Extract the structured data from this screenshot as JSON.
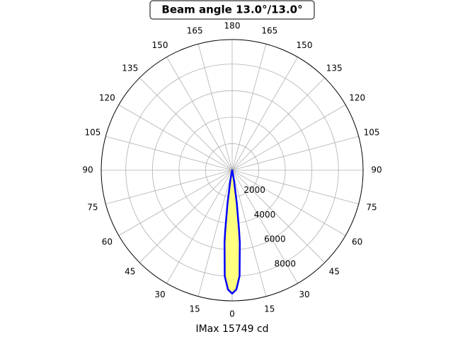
{
  "chart_data": {
    "type": "polar",
    "title": "Beam angle 13.0°/13.0°",
    "xlabel": "IMax 15749 cd",
    "x": [
      -15,
      -12,
      -10,
      -8,
      -6.5,
      -6,
      -4,
      -2,
      0,
      2,
      4,
      6,
      6.5,
      8,
      10,
      12,
      15
    ],
    "values": [
      0,
      200,
      800,
      2500,
      4650,
      5500,
      8000,
      9000,
      9300,
      9000,
      8000,
      5500,
      4650,
      2500,
      800,
      200,
      0
    ],
    "line_color": "#0000ff",
    "fill_color": "#ffff80",
    "rlim": [
      0,
      9850
    ],
    "rticks": [
      2000,
      4000,
      6000,
      8000
    ],
    "thetaticks": [
      0,
      15,
      30,
      45,
      60,
      75,
      90,
      105,
      120,
      135,
      150,
      165,
      180,
      {
        "value": -165,
        "label": "165"
      },
      {
        "value": -150,
        "label": "150"
      },
      {
        "value": -135,
        "label": "135"
      },
      {
        "value": -120,
        "label": "120"
      },
      {
        "value": -105,
        "label": "105"
      },
      {
        "value": -90,
        "label": "90"
      },
      {
        "value": -75,
        "label": "75"
      },
      {
        "value": -60,
        "label": "60"
      },
      {
        "value": -45,
        "label": "45"
      },
      {
        "value": -30,
        "label": "30"
      },
      {
        "value": -15,
        "label": "15"
      }
    ],
    "grid": true
  }
}
